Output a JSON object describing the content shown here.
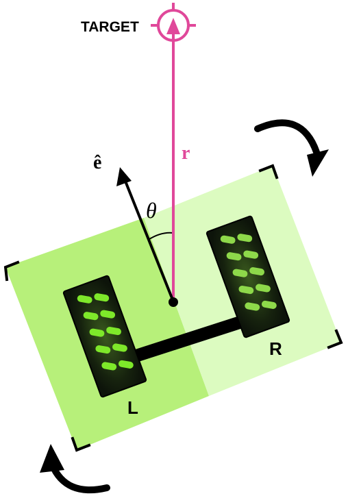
{
  "labels": {
    "target": "TARGET",
    "vector_r": "r",
    "unit_vector_e": "ê",
    "angle": "θ",
    "left_wheel": "L",
    "right_wheel": "R"
  },
  "colors": {
    "target": "#e0489a",
    "vector_r": "#e0489a",
    "body_left": "#b7f07a",
    "body_right": "#dcfbc0",
    "wheel_tread": "#7ee82a",
    "wheel_bg": "#111a0c",
    "ink": "#000000"
  },
  "icons": {
    "target": "crosshair-icon",
    "rotation_top": "clockwise-arrow-icon",
    "rotation_bottom": "clockwise-arrow-icon"
  }
}
